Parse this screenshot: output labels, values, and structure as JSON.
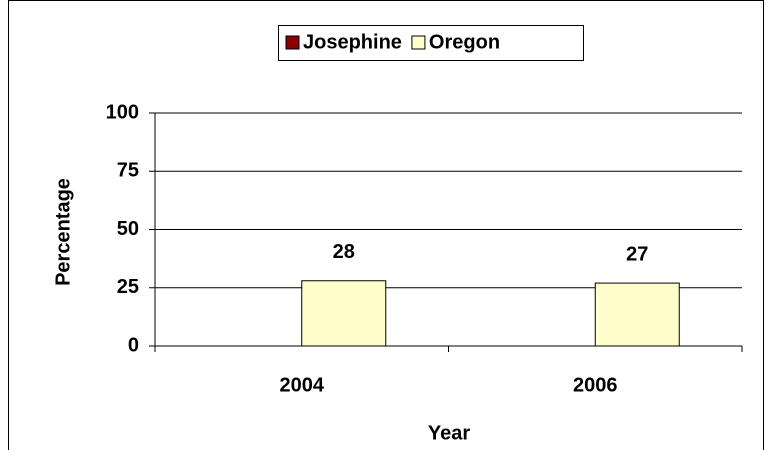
{
  "chart_data": {
    "type": "bar",
    "categories": [
      "2004",
      "2006"
    ],
    "series": [
      {
        "name": "Josephine",
        "color": "#8b0000",
        "values": [
          null,
          null
        ]
      },
      {
        "name": "Oregon",
        "color": "#ffffcc",
        "values": [
          28,
          27
        ]
      }
    ],
    "x_label": "Year",
    "y_label": "Percentage",
    "ylim": [
      0,
      100
    ],
    "yticks": [
      0,
      25,
      50,
      75,
      100
    ],
    "grid": true,
    "legend": "top"
  }
}
